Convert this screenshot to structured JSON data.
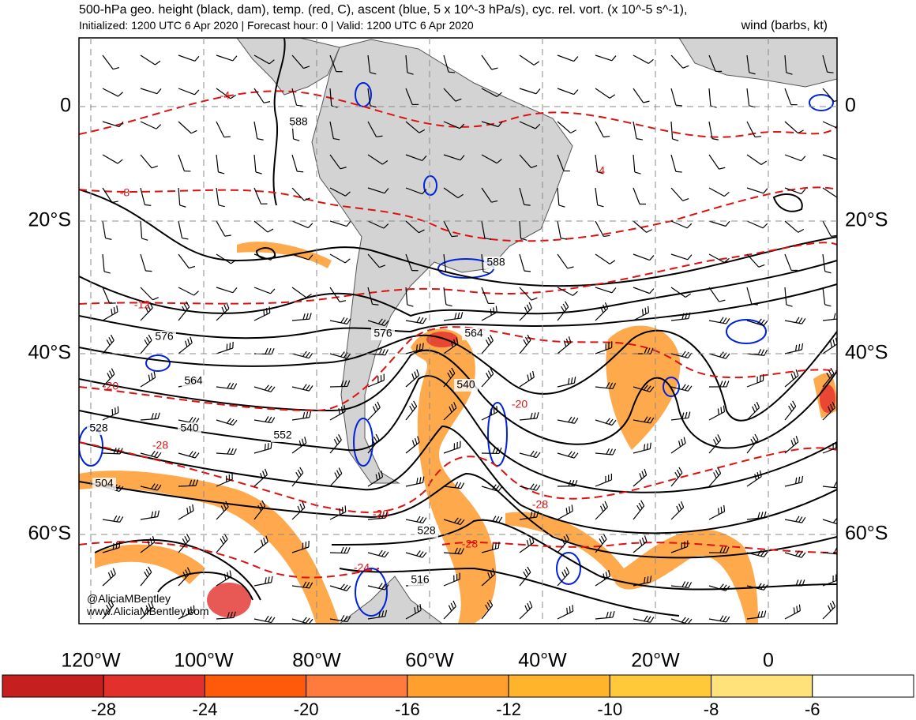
{
  "header": {
    "title": "500-hPa geo. height (black, dam), temp. (red, C), ascent (blue, 5 x 10^-3 hPa/s), cyc. rel. vort. (x 10^-5 s^-1),",
    "subtitle": "Initialized: 1200 UTC 6 Apr 2020 | Forecast hour: 0 | Valid: 1200 UTC 6 Apr 2020",
    "subtitle_right": "wind (barbs, kt)"
  },
  "map": {
    "lat_labels": [
      "0",
      "20°S",
      "40°S",
      "60°S"
    ],
    "lon_labels": [
      "120°W",
      "100°W",
      "80°W",
      "60°W",
      "40°W",
      "20°W",
      "0"
    ],
    "height_labels": [
      "588",
      "588",
      "576",
      "576",
      "564",
      "564",
      "540",
      "528",
      "540",
      "552",
      "504",
      "528",
      "516"
    ],
    "temp_labels": [
      "-4",
      "-4",
      "-8",
      "-12",
      "-20",
      "-28",
      "-20",
      "-24",
      "-28",
      "-28",
      "-20"
    ],
    "watermark": [
      "@AliciaMBentley",
      "www.AliciaMBentley.com"
    ]
  },
  "colorbar": {
    "colors": [
      "#c61f1f",
      "#e2302c",
      "#fe5a0a",
      "#ff7b3d",
      "#ff9f2e",
      "#ffb42c",
      "#ffc93a",
      "#ffe27a",
      "#ffffff"
    ],
    "labels": [
      "-28",
      "-24",
      "-20",
      "-16",
      "-12",
      "-10",
      "-8",
      "-6"
    ]
  }
}
